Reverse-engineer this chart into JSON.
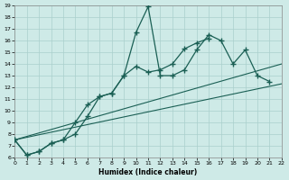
{
  "xlabel": "Humidex (Indice chaleur)",
  "xlim": [
    0,
    22
  ],
  "ylim": [
    6,
    19
  ],
  "yticks": [
    6,
    7,
    8,
    9,
    10,
    11,
    12,
    13,
    14,
    15,
    16,
    17,
    18,
    19
  ],
  "xticks": [
    0,
    1,
    2,
    3,
    4,
    5,
    6,
    7,
    8,
    9,
    10,
    11,
    12,
    13,
    14,
    15,
    16,
    17,
    18,
    19,
    20,
    21,
    22
  ],
  "background_color": "#ceeae7",
  "grid_color": "#aacfcc",
  "line_color": "#1a5f54",
  "line1_x": [
    0,
    1,
    2,
    3,
    4,
    5,
    6,
    7,
    8,
    9,
    10,
    11,
    12,
    13,
    14,
    15,
    16,
    17,
    18,
    19,
    20,
    21
  ],
  "line1_y": [
    7.5,
    6.2,
    6.5,
    7.2,
    7.5,
    9.0,
    10.5,
    11.2,
    11.5,
    13.0,
    16.7,
    18.9,
    13.0,
    13.0,
    13.5,
    15.2,
    16.5,
    16.0,
    14.0,
    15.2,
    13.0,
    12.5
  ],
  "line2_x": [
    0,
    1,
    2,
    3,
    4,
    5,
    6,
    7,
    8,
    9,
    10,
    11,
    12,
    13,
    14,
    15,
    16
  ],
  "line2_y": [
    7.5,
    6.2,
    6.5,
    7.2,
    7.5,
    8.0,
    9.5,
    11.2,
    11.5,
    13.0,
    13.8,
    13.3,
    13.5,
    14.0,
    15.3,
    15.8,
    16.2
  ],
  "line3_x": [
    0,
    22
  ],
  "line3_y": [
    7.5,
    12.3
  ],
  "line4_x": [
    0,
    22
  ],
  "line4_y": [
    7.5,
    14.0
  ]
}
